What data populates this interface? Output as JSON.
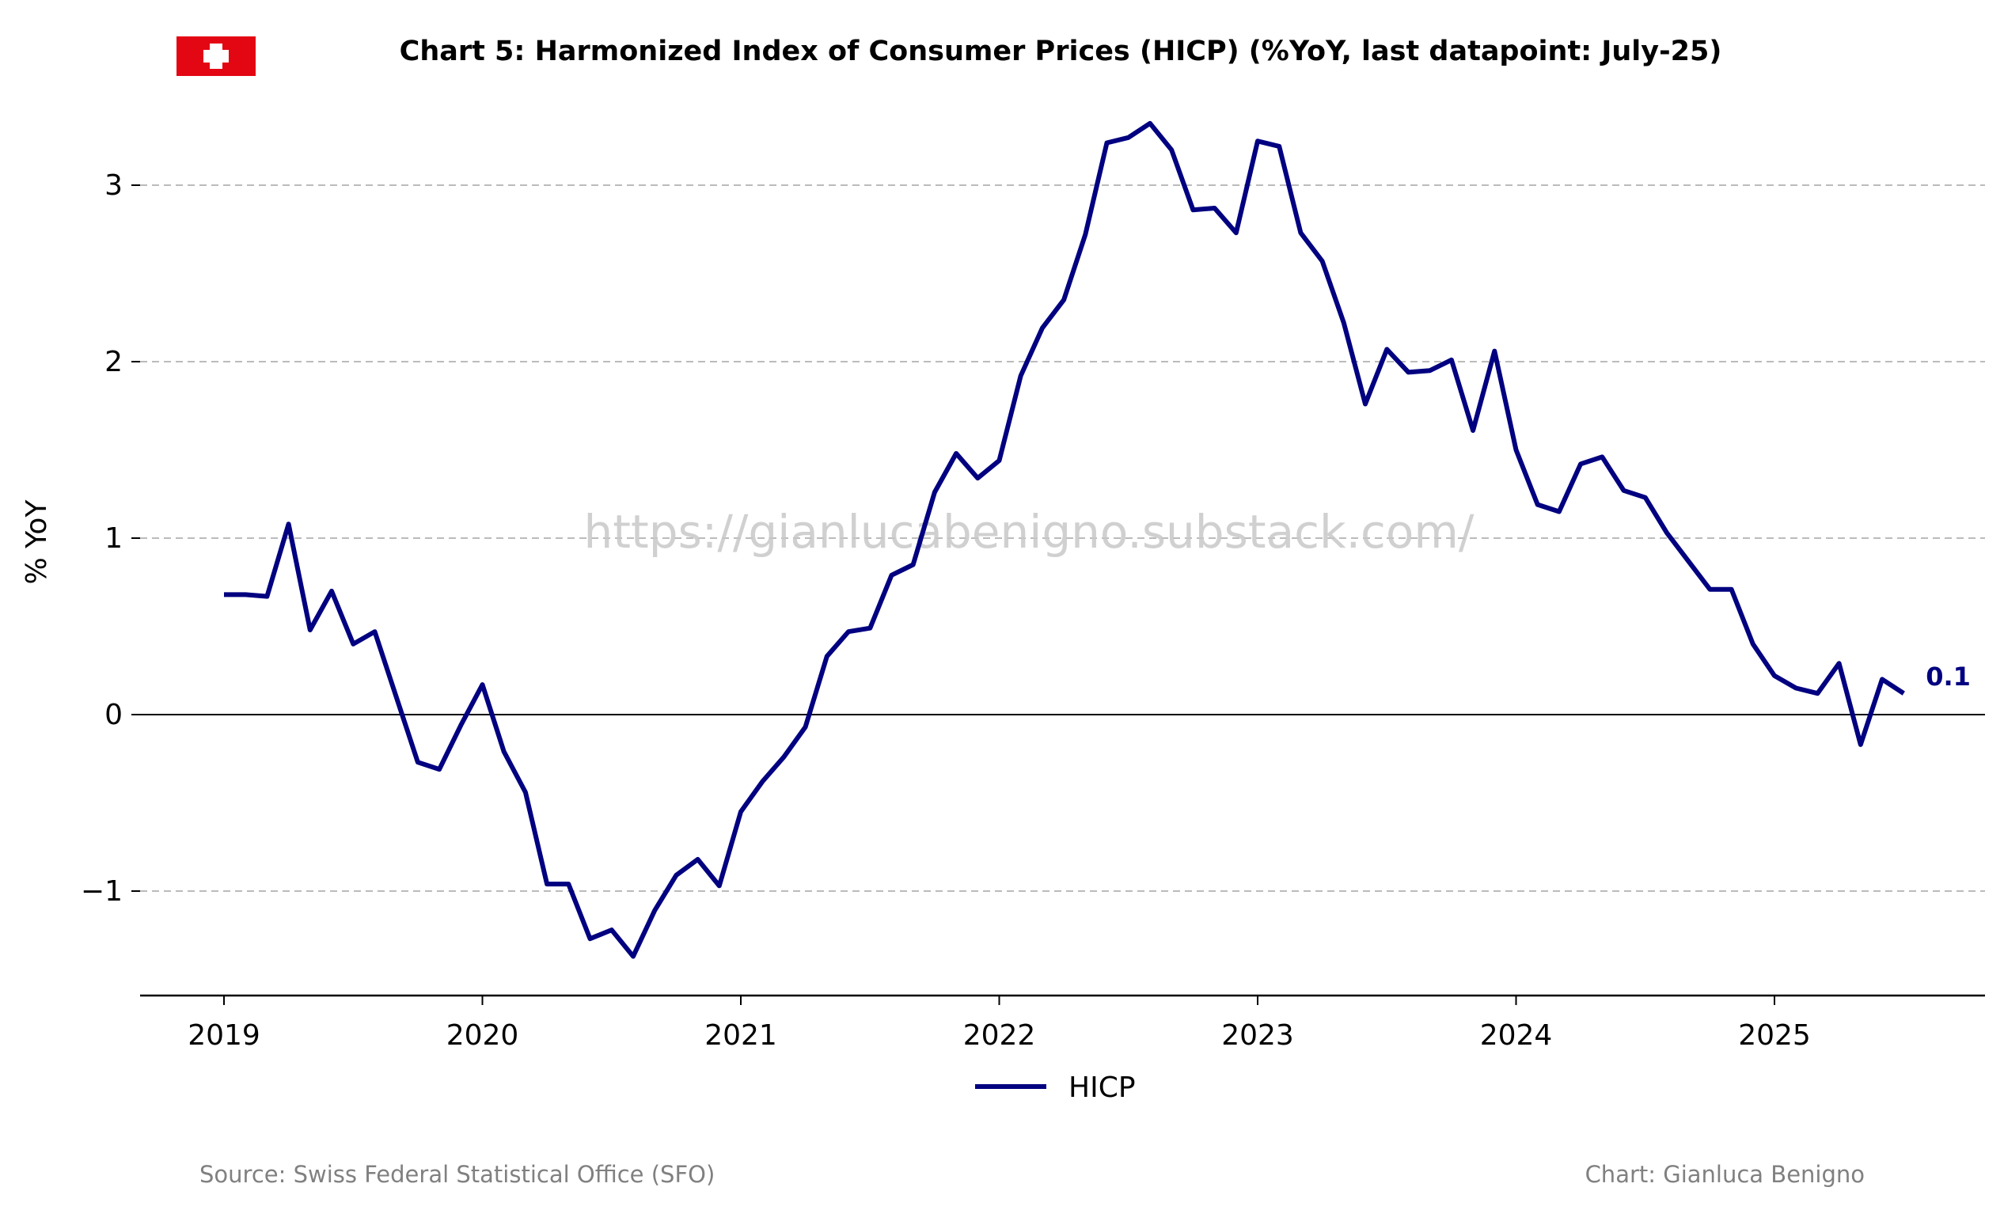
{
  "header": {
    "title": "Chart 5: Harmonized Index of Consumer Prices (HICP) (%YoY, last datapoint: July-25)",
    "flag_icon": "swiss-flag-icon"
  },
  "footer": {
    "source": "Source: Swiss Federal Statistical Office (SFO)",
    "credit": "Chart: Gianluca Benigno"
  },
  "watermark": "https://gianlucabenigno.substack.com/",
  "colors": {
    "line": "#000080",
    "grid": "#bbbbbb",
    "flag_red": "#e30613",
    "text": "#000000",
    "footer_text": "#808080",
    "watermark": "#c8c8c8"
  },
  "chart_data": {
    "type": "line",
    "title": "Chart 5: Harmonized Index of Consumer Prices (HICP) (%YoY, last datapoint: July-25)",
    "xlabel": "",
    "ylabel": "% YoY",
    "x_ticks": [
      "2019",
      "2020",
      "2021",
      "2022",
      "2023",
      "2024",
      "2025"
    ],
    "y_ticks": [
      3,
      2,
      1,
      0,
      -1
    ],
    "y_tick_labels": [
      "3",
      "2",
      "1",
      "0",
      "−1"
    ],
    "xlim": [
      "2018-09",
      "2025-11"
    ],
    "ylim": [
      -1.6,
      3.4
    ],
    "grid": "horizontal dashed",
    "zero_line": true,
    "legend": {
      "position": "bottom-center",
      "entries": [
        "HICP"
      ]
    },
    "last_value_label": "0.1",
    "series": [
      {
        "name": "HICP",
        "color": "#000080",
        "x": [
          "2019-01",
          "2019-02",
          "2019-03",
          "2019-04",
          "2019-05",
          "2019-06",
          "2019-07",
          "2019-08",
          "2019-09",
          "2019-10",
          "2019-11",
          "2019-12",
          "2020-01",
          "2020-02",
          "2020-03",
          "2020-04",
          "2020-05",
          "2020-06",
          "2020-07",
          "2020-08",
          "2020-09",
          "2020-10",
          "2020-11",
          "2020-12",
          "2021-01",
          "2021-02",
          "2021-03",
          "2021-04",
          "2021-05",
          "2021-06",
          "2021-07",
          "2021-08",
          "2021-09",
          "2021-10",
          "2021-11",
          "2021-12",
          "2022-01",
          "2022-02",
          "2022-03",
          "2022-04",
          "2022-05",
          "2022-06",
          "2022-07",
          "2022-08",
          "2022-09",
          "2022-10",
          "2022-11",
          "2022-12",
          "2023-01",
          "2023-02",
          "2023-03",
          "2023-04",
          "2023-05",
          "2023-06",
          "2023-07",
          "2023-08",
          "2023-09",
          "2023-10",
          "2023-11",
          "2023-12",
          "2024-01",
          "2024-02",
          "2024-03",
          "2024-04",
          "2024-05",
          "2024-06",
          "2024-07",
          "2024-08",
          "2024-09",
          "2024-10",
          "2024-11",
          "2024-12",
          "2025-01",
          "2025-02",
          "2025-03",
          "2025-04",
          "2025-05",
          "2025-06",
          "2025-07"
        ],
        "values": [
          0.68,
          0.68,
          0.67,
          1.08,
          0.48,
          0.7,
          0.4,
          0.47,
          0.1,
          -0.27,
          -0.31,
          -0.06,
          0.17,
          -0.21,
          -0.44,
          -0.96,
          -0.96,
          -1.27,
          -1.22,
          -1.37,
          -1.11,
          -0.91,
          -0.82,
          -0.97,
          -0.55,
          -0.38,
          -0.24,
          -0.07,
          0.33,
          0.47,
          0.49,
          0.79,
          0.85,
          1.26,
          1.48,
          1.34,
          1.44,
          1.92,
          2.19,
          2.35,
          2.72,
          3.24,
          3.27,
          3.35,
          3.2,
          2.86,
          2.87,
          2.73,
          3.25,
          3.22,
          2.73,
          2.57,
          2.22,
          1.76,
          2.07,
          1.94,
          1.95,
          2.01,
          1.61,
          2.06,
          1.5,
          1.19,
          1.15,
          1.42,
          1.46,
          1.27,
          1.23,
          1.03,
          0.87,
          0.71,
          0.71,
          0.4,
          0.22,
          0.15,
          0.12,
          0.29,
          -0.17,
          0.2,
          0.12
        ]
      }
    ]
  }
}
